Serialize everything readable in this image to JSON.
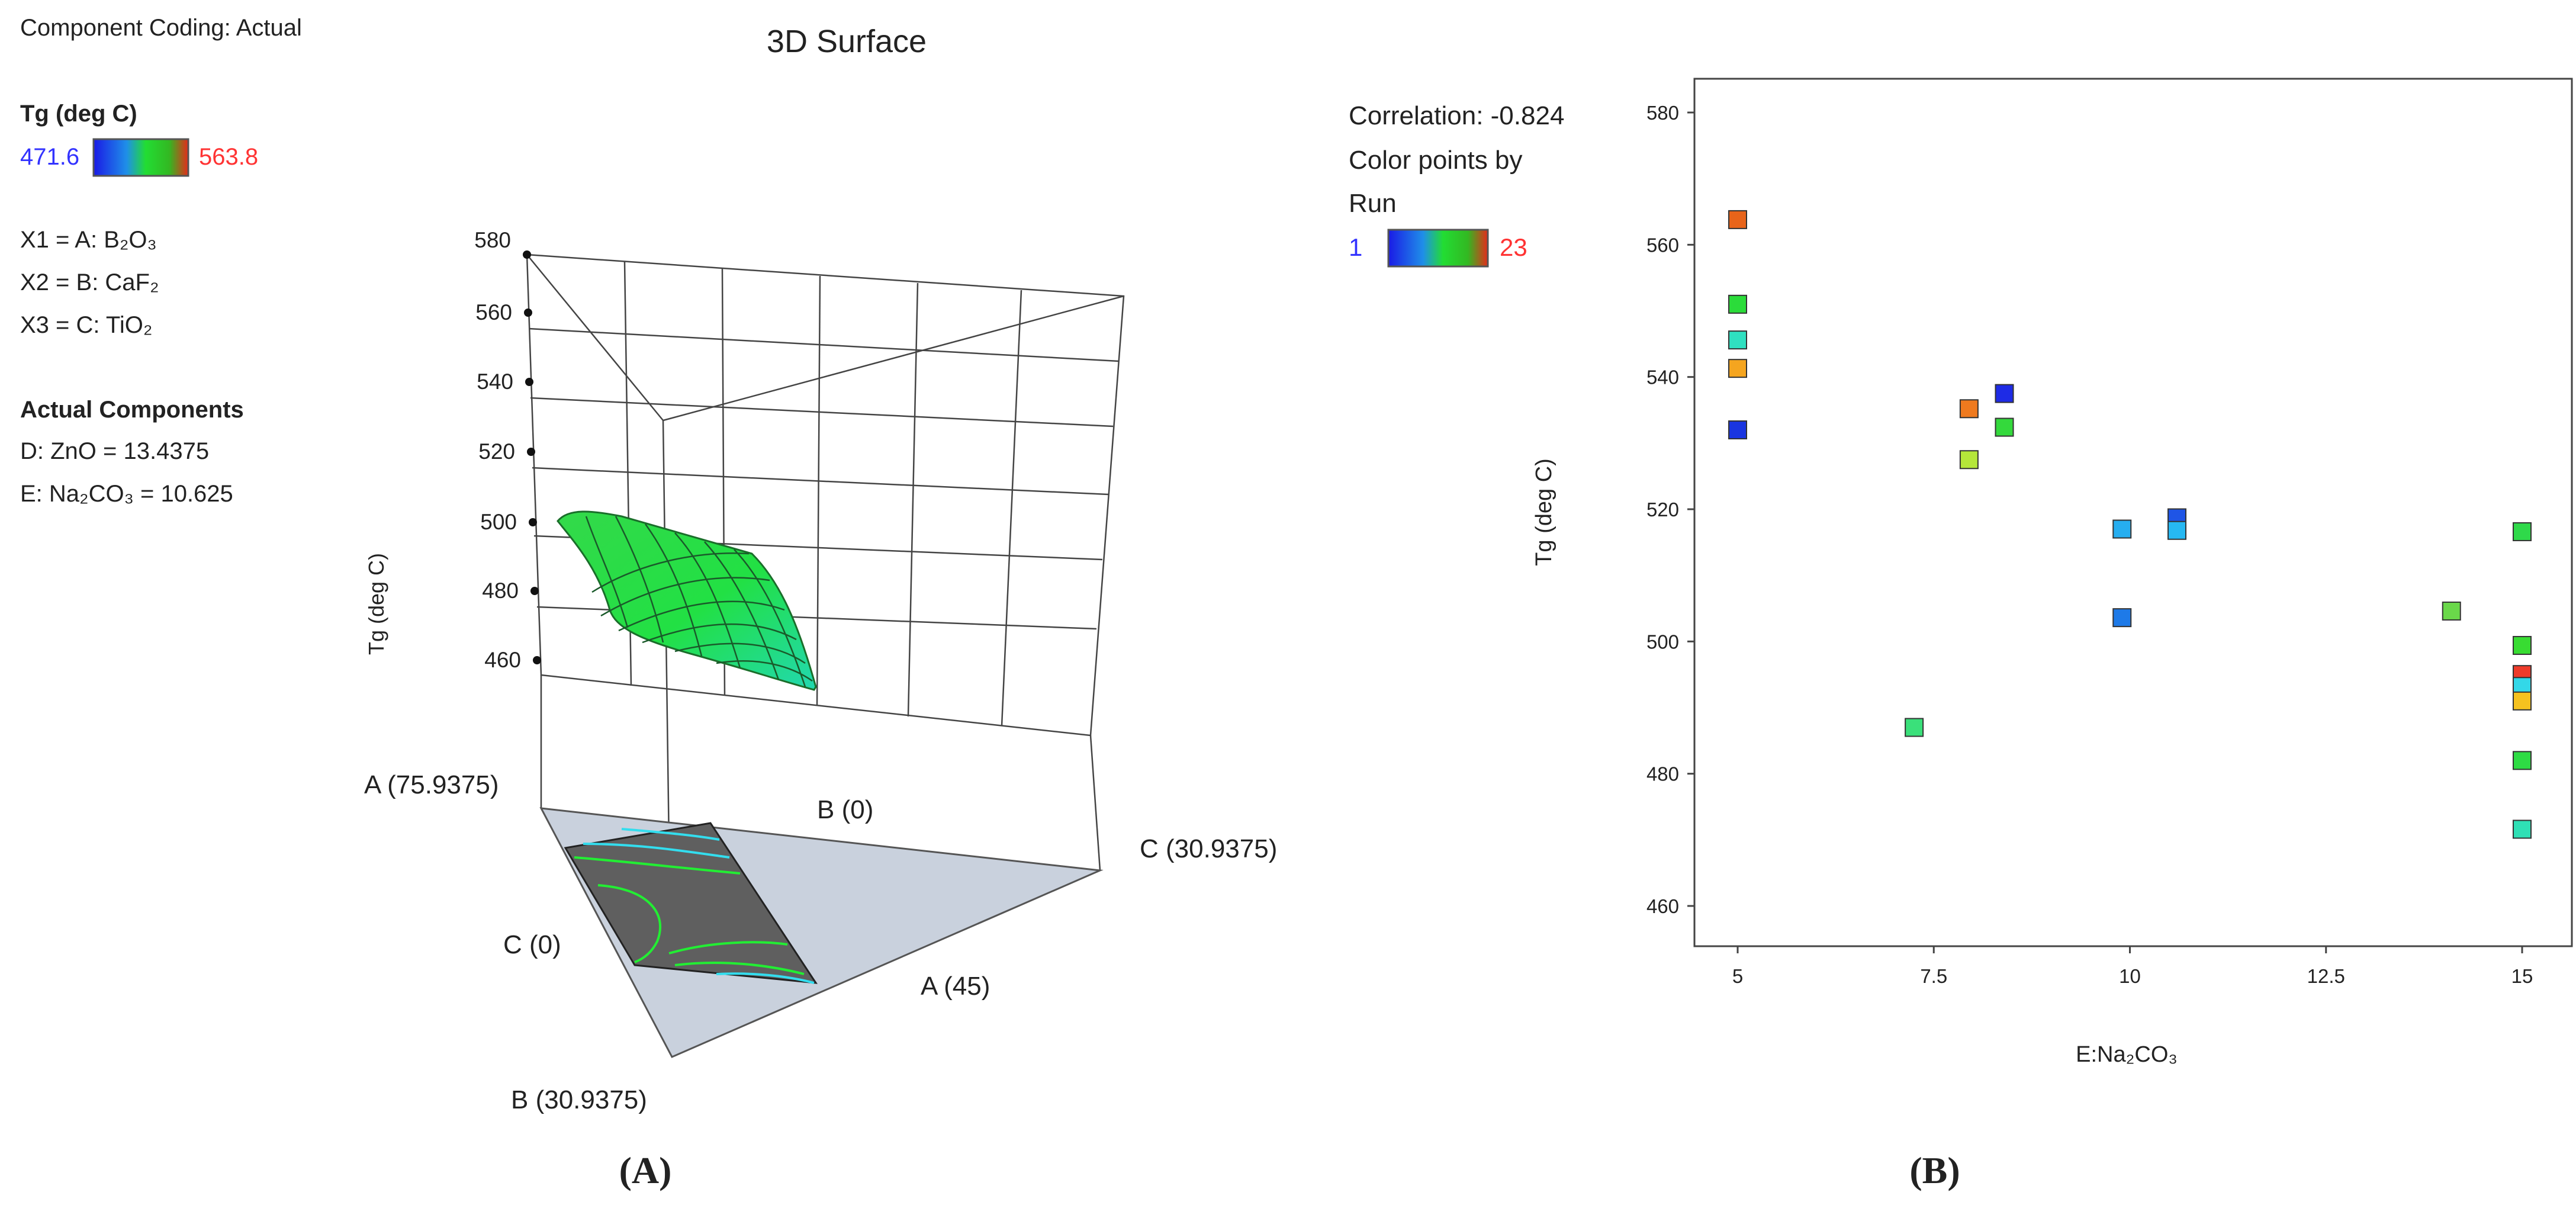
{
  "panel_a": {
    "coding_label": "Component Coding: Actual",
    "title": "3D Surface",
    "response": {
      "label": "Tg  (deg C)",
      "low": "471.6",
      "high": "563.8",
      "low_color": "#3333ff",
      "high_color": "#ff3333"
    },
    "factors": [
      {
        "code": "X1",
        "name": "A",
        "formula": "B₂O₃",
        "label": "X1 = A: B₂O₃"
      },
      {
        "code": "X2",
        "name": "B",
        "formula": "CaF₂",
        "label": "X2 = B: CaF₂"
      },
      {
        "code": "X3",
        "name": "C",
        "formula": "TiO₂",
        "label": "X3 = C: TiO₂"
      }
    ],
    "actual_heading": "Actual Components",
    "actual_components": [
      "D: ZnO = 13.4375",
      "E: Na₂CO₃  = 10.625"
    ],
    "z_axis": {
      "label": "Tg  (deg C)",
      "ticks": [
        "460",
        "480",
        "500",
        "520",
        "540",
        "560",
        "580"
      ]
    },
    "vertex_labels": {
      "a_top": "A (75.9375)",
      "b_right_top": "B (0)",
      "c_right": "C (30.9375)",
      "c_left": "C (0)",
      "a_bottom": "A (45)",
      "b_bottom": "B (30.9375)"
    },
    "surface_color": "#22dd44",
    "contour_colors": [
      "#22ee33",
      "#33ddee"
    ],
    "caption": "(A)"
  },
  "panel_b": {
    "correlation": "Correlation: -0.824",
    "color_by_line1": "Color points by",
    "color_by_line2": "Run",
    "legend_low": "1",
    "legend_high": "23",
    "caption": "(B)"
  },
  "chart_data": {
    "type": "scatter",
    "xlabel": "E:Na₂CO₃",
    "ylabel": "Tg  (deg C)",
    "xlim": [
      5,
      15
    ],
    "ylim": [
      460,
      580
    ],
    "x_ticks": [
      "5",
      "7.5",
      "10",
      "12.5",
      "15"
    ],
    "y_ticks": [
      "460",
      "480",
      "500",
      "520",
      "540",
      "560",
      "580"
    ],
    "grid": false,
    "points": [
      {
        "x": 5,
        "y": 563.8,
        "color": "#e8641a"
      },
      {
        "x": 5,
        "y": 551,
        "color": "#2bdc3a"
      },
      {
        "x": 5,
        "y": 545.6,
        "color": "#2fe0c0"
      },
      {
        "x": 5,
        "y": 541.3,
        "color": "#f5a51f"
      },
      {
        "x": 5,
        "y": 532,
        "color": "#1a35e0"
      },
      {
        "x": 7.25,
        "y": 487,
        "color": "#3ae07a"
      },
      {
        "x": 7.95,
        "y": 527.5,
        "color": "#b5e63a"
      },
      {
        "x": 7.95,
        "y": 535.2,
        "color": "#ef7a1e"
      },
      {
        "x": 8.4,
        "y": 537.5,
        "color": "#1e2be6"
      },
      {
        "x": 8.4,
        "y": 532.4,
        "color": "#34d93c"
      },
      {
        "x": 9.9,
        "y": 517,
        "color": "#26aef0"
      },
      {
        "x": 9.9,
        "y": 503.6,
        "color": "#1e7ae8"
      },
      {
        "x": 10.6,
        "y": 518.7,
        "color": "#1f55e6"
      },
      {
        "x": 10.6,
        "y": 516.8,
        "color": "#26b8f2"
      },
      {
        "x": 14.1,
        "y": 504.6,
        "color": "#6ad84a"
      },
      {
        "x": 15,
        "y": 516.6,
        "color": "#2fd94a"
      },
      {
        "x": 15,
        "y": 499.4,
        "color": "#38dc32"
      },
      {
        "x": 15,
        "y": 495,
        "color": "#ee3b2a"
      },
      {
        "x": 15,
        "y": 493.2,
        "color": "#33d8e8"
      },
      {
        "x": 15,
        "y": 491,
        "color": "#f5c21f"
      },
      {
        "x": 15,
        "y": 482,
        "color": "#2edc44"
      },
      {
        "x": 15,
        "y": 471.6,
        "color": "#2fe0b5"
      }
    ]
  }
}
